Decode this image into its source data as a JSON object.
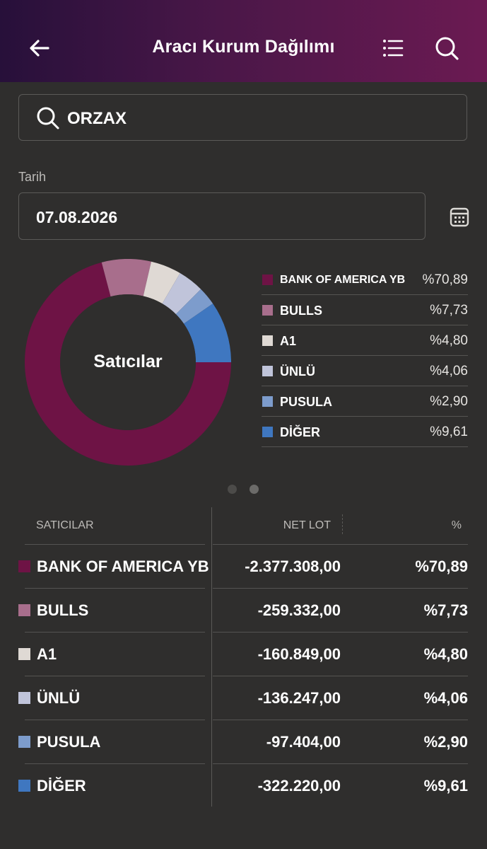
{
  "header": {
    "title": "Aracı Kurum Dağılımı"
  },
  "search": {
    "value": "ORZAX"
  },
  "date": {
    "label": "Tarih",
    "value": "07.08.2026"
  },
  "chart_data": {
    "type": "pie",
    "center_label": "Satıcılar",
    "categories": [
      "BANK OF AMERICA YB",
      "BULLS",
      "A1",
      "ÜNLÜ",
      "PUSULA",
      "DİĞER"
    ],
    "values": [
      70.89,
      7.73,
      4.8,
      4.06,
      2.9,
      9.61
    ],
    "value_labels": [
      "%70,89",
      "%7,73",
      "%4,80",
      "%4,06",
      "%2,90",
      "%9,61"
    ],
    "colors": [
      "#6e1345",
      "#a86e8c",
      "#dfd9d4",
      "#c0c4da",
      "#7d9ccc",
      "#3f77c0"
    ]
  },
  "pager": {
    "pages": 2,
    "active": 1
  },
  "table": {
    "headers": {
      "name": "SATICILAR",
      "lot": "NET LOT",
      "pct": "%"
    },
    "rows": [
      {
        "name": "BANK OF AMERICA YB",
        "lot": "-2.377.308,00",
        "pct": "%70,89",
        "color": "#6e1345"
      },
      {
        "name": "BULLS",
        "lot": "-259.332,00",
        "pct": "%7,73",
        "color": "#a86e8c"
      },
      {
        "name": "A1",
        "lot": "-160.849,00",
        "pct": "%4,80",
        "color": "#dfd9d4"
      },
      {
        "name": "ÜNLÜ",
        "lot": "-136.247,00",
        "pct": "%4,06",
        "color": "#c0c4da"
      },
      {
        "name": "PUSULA",
        "lot": "-97.404,00",
        "pct": "%2,90",
        "color": "#7d9ccc"
      },
      {
        "name": "DİĞER",
        "lot": "-322.220,00",
        "pct": "%9,61",
        "color": "#3f77c0"
      }
    ]
  }
}
